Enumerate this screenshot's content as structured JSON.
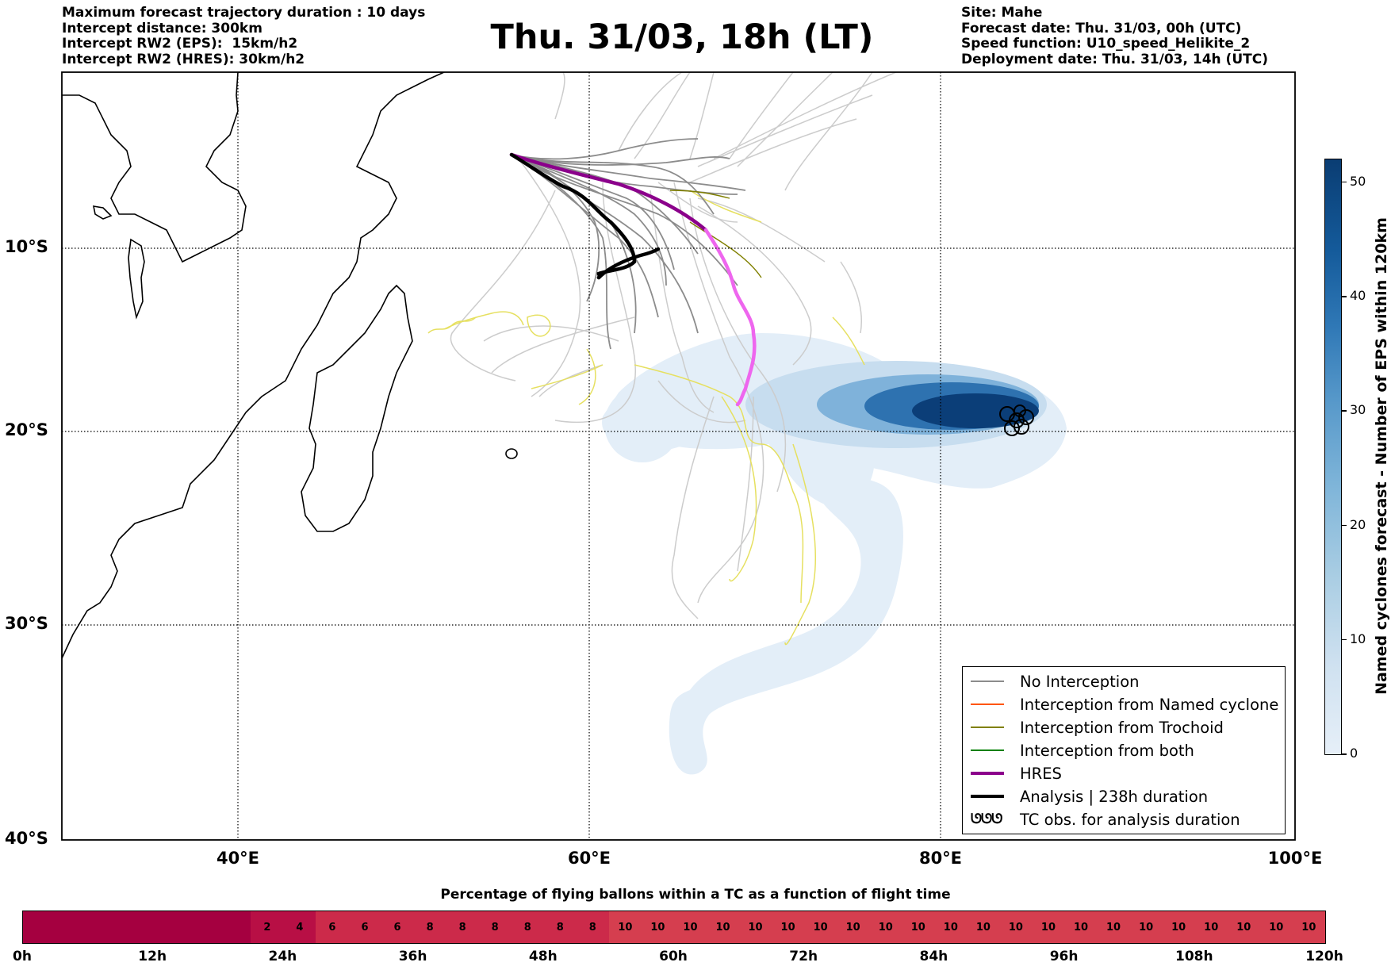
{
  "header": {
    "left_lines": [
      "Maximum forecast trajectory duration : 10 days",
      "Intercept distance: 300km",
      "Intercept RW2 (EPS):  15km/h2",
      "Intercept RW2 (HRES): 30km/h2"
    ],
    "title": "Thu. 31/03, 18h (LT)",
    "right_lines": [
      "Site: Mahe",
      "Forecast date: Thu. 31/03, 00h (UTC)",
      "Speed function: U10_speed_Helikite_2",
      "Deployment date: Thu. 31/03, 14h (UTC)"
    ]
  },
  "map": {
    "lat_labels": [
      "10°S",
      "20°S",
      "30°S",
      "40°S"
    ],
    "lon_labels": [
      "40°E",
      "60°E",
      "80°E",
      "100°E"
    ],
    "colors": {
      "no_interception": "#8c8c8c",
      "named_cyclone": "#ff5500",
      "trochoid": "#808000",
      "both": "#008000",
      "hres": "#8b008b",
      "hres_late": "#ee66ee",
      "analysis": "#000000",
      "light_tracks": "#cccccc",
      "yellow_tracks": "#e6e060"
    },
    "legend": {
      "items": [
        {
          "label": "No Interception",
          "color": "#8c8c8c",
          "style": "thin"
        },
        {
          "label": "Interception from Named cyclone",
          "color": "#ff5500",
          "style": "thin"
        },
        {
          "label": "Interception from Trochoid",
          "color": "#808000",
          "style": "thin"
        },
        {
          "label": "Interception from both",
          "color": "#008000",
          "style": "thin"
        },
        {
          "label": "HRES",
          "color": "#8b008b",
          "style": "thick"
        },
        {
          "label": "Analysis | 238h duration",
          "color": "#000000",
          "style": "thick"
        },
        {
          "label": "TC obs. for analysis duration",
          "color": "#000000",
          "style": "symbol"
        }
      ],
      "tc_symbol": "ᘎᘎᘎ"
    }
  },
  "colorbar_v": {
    "label": "Named cyclones forecast - Number of EPS within 120km",
    "ticks": [
      "0",
      "10",
      "20",
      "30",
      "40",
      "50"
    ],
    "range": [
      0,
      52
    ]
  },
  "hbar": {
    "title": "Percentage of flying ballons within a TC as a function of flight time",
    "values": [
      "",
      "",
      "",
      "",
      "",
      "",
      "",
      "2",
      "4",
      "6",
      "6",
      "6",
      "8",
      "8",
      "8",
      "8",
      "8",
      "8",
      "10",
      "10",
      "10",
      "10",
      "10",
      "10",
      "10",
      "10",
      "10",
      "10",
      "10",
      "10",
      "10",
      "10",
      "10",
      "10",
      "10",
      "10",
      "10",
      "10",
      "10",
      "10"
    ],
    "tick_labels": [
      "0h",
      "12h",
      "24h",
      "36h",
      "48h",
      "60h",
      "72h",
      "84h",
      "96h",
      "108h",
      "120h"
    ],
    "colors": {
      "zero": "#a50040",
      "low": "#b80f45",
      "mid": "#cc2a4a",
      "high": "#d53e4f"
    }
  }
}
